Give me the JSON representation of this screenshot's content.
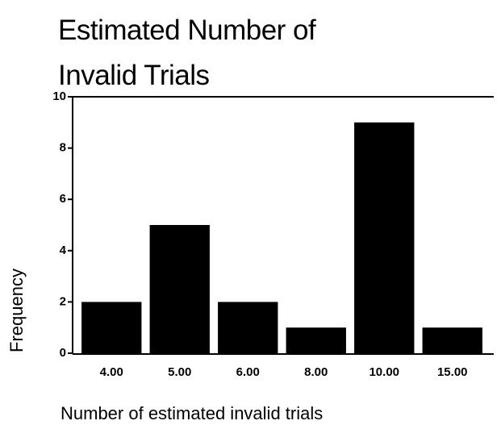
{
  "chart_data": {
    "type": "bar",
    "title": "Estimated Number of Invalid Trials",
    "xlabel": "Number of estimated invalid trials",
    "ylabel": "Frequency",
    "categories": [
      "4.00",
      "5.00",
      "6.00",
      "8.00",
      "10.00",
      "15.00"
    ],
    "values": [
      2,
      5,
      2,
      1,
      9,
      1
    ],
    "color": "#000000",
    "ylim": [
      0,
      10
    ],
    "yticks": [
      0,
      2,
      4,
      6,
      8,
      10
    ],
    "grid": false
  }
}
